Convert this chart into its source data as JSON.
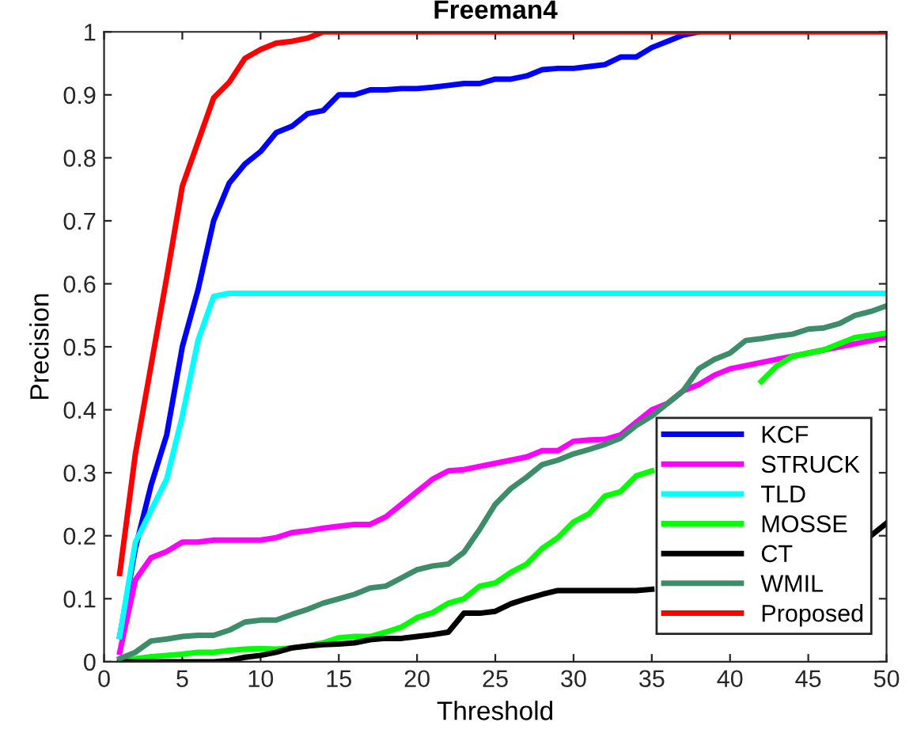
{
  "chart_data": {
    "type": "line",
    "title": "Freeman4",
    "xlabel": "Threshold",
    "ylabel": "Precision",
    "x": [
      1,
      2,
      3,
      4,
      5,
      6,
      7,
      8,
      9,
      10,
      11,
      12,
      13,
      14,
      15,
      16,
      17,
      18,
      19,
      20,
      21,
      22,
      23,
      24,
      25,
      26,
      27,
      28,
      29,
      30,
      31,
      32,
      33,
      34,
      35,
      36,
      37,
      38,
      39,
      40,
      41,
      42,
      43,
      44,
      45,
      46,
      47,
      48,
      49,
      50
    ],
    "xlim": [
      0,
      50
    ],
    "xticks": [
      0,
      5,
      10,
      15,
      20,
      25,
      30,
      35,
      40,
      45,
      50
    ],
    "ylim": [
      0,
      1
    ],
    "yticks": [
      0,
      0.1,
      0.2,
      0.3,
      0.4,
      0.5,
      0.6,
      0.7,
      0.8,
      0.9,
      1
    ],
    "grid": false,
    "legend": "bottom right",
    "line_style": "solid",
    "marker": "none",
    "series": [
      {
        "name": "KCF",
        "color": "#0000ff",
        "values": [
          0.04,
          0.18,
          0.28,
          0.36,
          0.5,
          0.59,
          0.7,
          0.76,
          0.79,
          0.81,
          0.84,
          0.85,
          0.87,
          0.875,
          0.9,
          0.9,
          0.908,
          0.908,
          0.91,
          0.91,
          0.912,
          0.915,
          0.918,
          0.918,
          0.925,
          0.925,
          0.93,
          0.94,
          0.942,
          0.942,
          0.945,
          0.948,
          0.96,
          0.96,
          0.975,
          0.985,
          0.995,
          1,
          null,
          null,
          null,
          null,
          null,
          null,
          null,
          null,
          null,
          null,
          null,
          null
        ]
      },
      {
        "name": "STRUCK",
        "color": "#ff00ff",
        "values": [
          0.015,
          0.13,
          0.165,
          0.175,
          0.19,
          0.19,
          0.193,
          0.193,
          0.193,
          0.193,
          0.197,
          0.205,
          0.208,
          0.212,
          0.215,
          0.218,
          0.218,
          0.23,
          0.25,
          0.27,
          0.29,
          0.303,
          0.305,
          0.31,
          0.315,
          0.32,
          0.325,
          0.335,
          0.335,
          0.35,
          0.352,
          0.353,
          0.36,
          0.38,
          0.4,
          0.41,
          0.43,
          0.44,
          0.455,
          0.465,
          0.47,
          0.475,
          0.48,
          0.485,
          0.49,
          0.495,
          0.5,
          0.505,
          0.51,
          0.515
        ]
      },
      {
        "name": "TLD",
        "color": "#00ffff",
        "values": [
          0.04,
          0.19,
          0.24,
          0.29,
          0.39,
          0.51,
          0.58,
          0.585,
          0.585,
          0.585,
          0.585,
          0.585,
          0.585,
          0.585,
          0.585,
          0.585,
          0.585,
          0.585,
          0.585,
          0.585,
          0.585,
          0.585,
          0.585,
          0.585,
          0.585,
          0.585,
          0.585,
          0.585,
          0.585,
          0.585,
          0.585,
          0.585,
          0.585,
          0.585,
          0.585,
          0.585,
          0.585,
          0.585,
          0.585,
          0.585,
          0.585,
          0.585,
          0.585,
          0.585,
          0.585,
          0.585,
          0.585,
          0.585,
          0.585,
          0.585
        ]
      },
      {
        "name": "MOSSE",
        "color": "#00ff00",
        "values": [
          0,
          0.005,
          0.008,
          0.01,
          0.012,
          0.015,
          0.015,
          0.018,
          0.02,
          0.021,
          0.02,
          0.022,
          0.025,
          0.03,
          0.038,
          0.04,
          0.04,
          0.047,
          0.055,
          0.07,
          0.078,
          0.093,
          0.1,
          0.12,
          0.125,
          0.142,
          0.155,
          0.18,
          0.197,
          0.222,
          0.235,
          0.263,
          0.27,
          0.295,
          0.303,
          null,
          null,
          null,
          null,
          null,
          null,
          0.445,
          0.47,
          0.485,
          0.49,
          0.495,
          0.505,
          0.515,
          0.518,
          0.522
        ]
      },
      {
        "name": "CT",
        "color": "#000000",
        "values": [
          0,
          0,
          0,
          0,
          0,
          0,
          0,
          0.002,
          0.007,
          0.01,
          0.015,
          0.022,
          0.025,
          0.027,
          0.028,
          0.03,
          0.035,
          0.037,
          0.037,
          0.04,
          0.043,
          0.047,
          0.077,
          0.077,
          0.08,
          0.092,
          0.1,
          0.107,
          0.113,
          0.113,
          0.113,
          0.113,
          0.113,
          0.113,
          0.115,
          null,
          null,
          null,
          null,
          null,
          null,
          null,
          null,
          null,
          null,
          null,
          null,
          null,
          0.2,
          0.22
        ]
      },
      {
        "name": "WMIL",
        "color": "#3d8c6a",
        "values": [
          0.005,
          0.015,
          0.033,
          0.036,
          0.04,
          0.042,
          0.042,
          0.05,
          0.063,
          0.066,
          0.066,
          0.075,
          0.083,
          0.093,
          0.1,
          0.107,
          0.117,
          0.12,
          0.133,
          0.146,
          0.152,
          0.155,
          0.174,
          0.21,
          0.25,
          0.275,
          0.293,
          0.313,
          0.32,
          0.33,
          0.337,
          0.345,
          0.355,
          0.375,
          0.39,
          0.41,
          0.43,
          0.465,
          0.48,
          0.49,
          0.51,
          0.513,
          0.517,
          0.52,
          0.528,
          0.53,
          0.537,
          0.55,
          0.556,
          0.565
        ]
      },
      {
        "name": "Proposed",
        "color": "#ff0000",
        "values": [
          0.14,
          0.33,
          0.47,
          0.61,
          0.755,
          0.825,
          0.895,
          0.92,
          0.958,
          0.972,
          0.982,
          0.985,
          0.99,
          1,
          1,
          1,
          1,
          1,
          1,
          1,
          1,
          1,
          1,
          1,
          1,
          1,
          1,
          1,
          1,
          1,
          1,
          1,
          1,
          1,
          1,
          1,
          1,
          1,
          1,
          1,
          1,
          1,
          1,
          1,
          1,
          1,
          1,
          1,
          1,
          1
        ]
      }
    ]
  }
}
